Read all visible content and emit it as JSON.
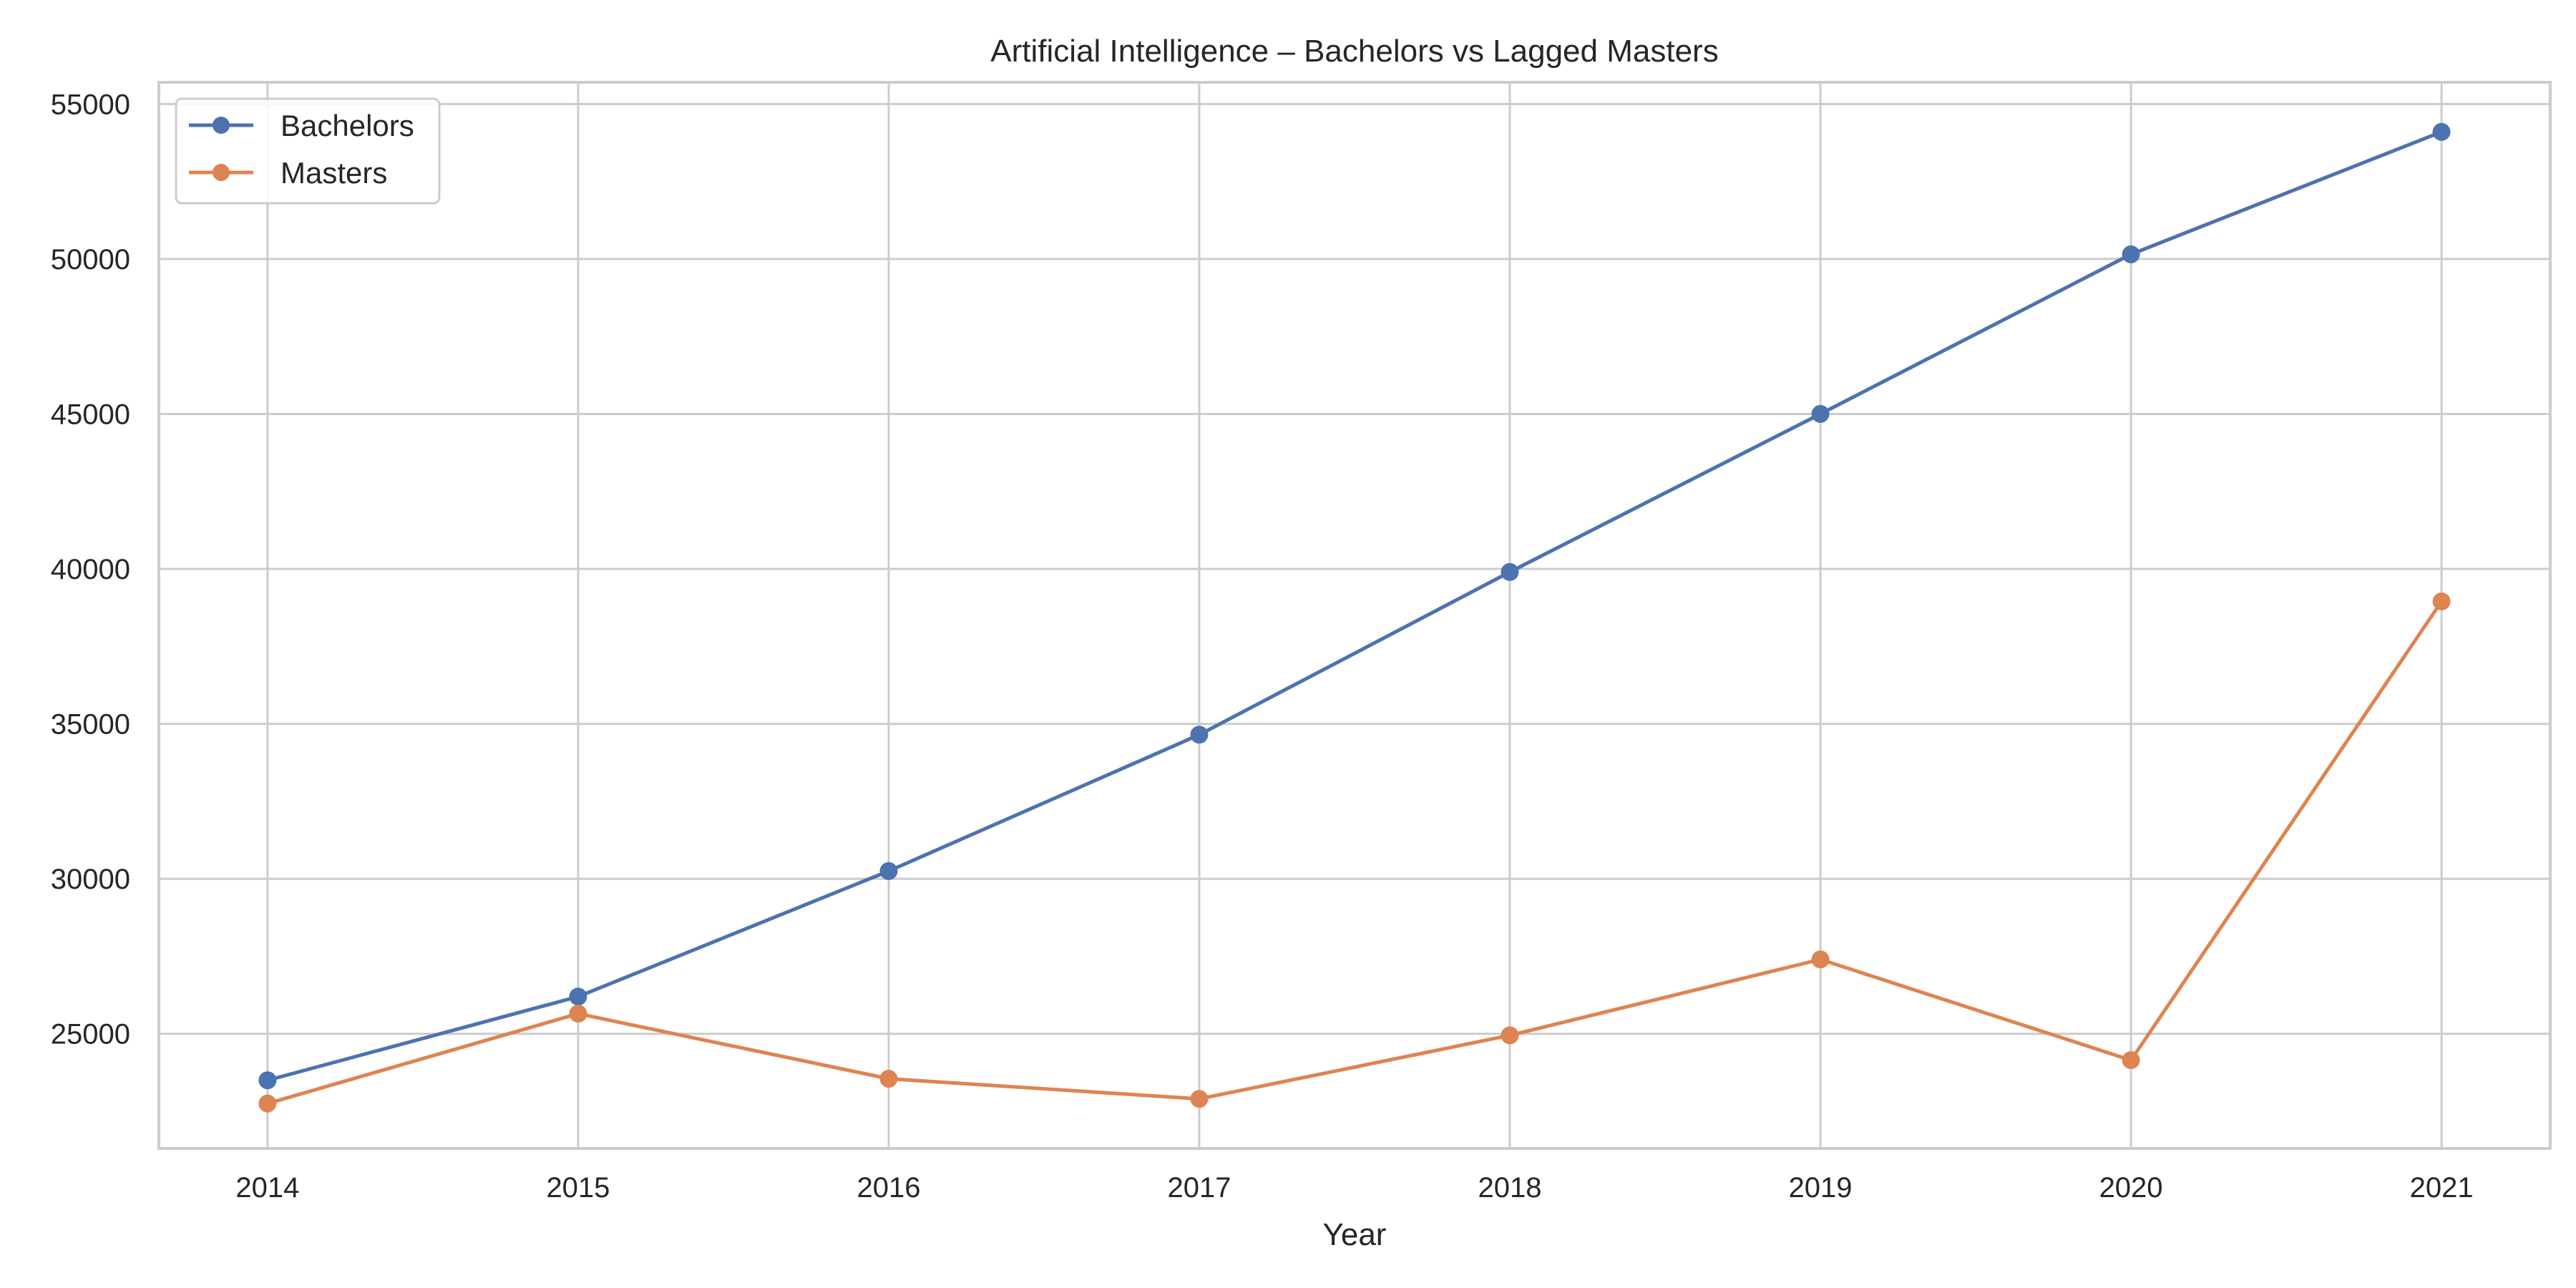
{
  "colors": {
    "background": "#ffffff",
    "grid": "#cccccc",
    "axes_frame": "#cccccc",
    "text": "#262626",
    "bachelors": "#4c72b0",
    "masters": "#dd8452"
  },
  "chart_data": {
    "type": "line",
    "title": "Artificial Intelligence – Bachelors vs Lagged Masters",
    "xlabel": "Year",
    "ylabel": "",
    "x": [
      "2014",
      "2015",
      "2016",
      "2017",
      "2018",
      "2019",
      "2020",
      "2021"
    ],
    "xlim": [
      2013.65,
      2021.35
    ],
    "ylim": [
      21300,
      55700
    ],
    "yticks": [
      "25000",
      "30000",
      "35000",
      "40000",
      "45000",
      "50000",
      "55000"
    ],
    "grid": true,
    "legend_position": "top-left",
    "marker": "circle",
    "series": [
      {
        "name": "Bachelors",
        "color": "#4c72b0",
        "values": [
          23500,
          26200,
          30250,
          34650,
          39900,
          45000,
          50150,
          54100
        ]
      },
      {
        "name": "Masters",
        "color": "#dd8452",
        "values": [
          22750,
          25650,
          23550,
          22900,
          24950,
          27400,
          24150,
          38950
        ]
      }
    ]
  }
}
